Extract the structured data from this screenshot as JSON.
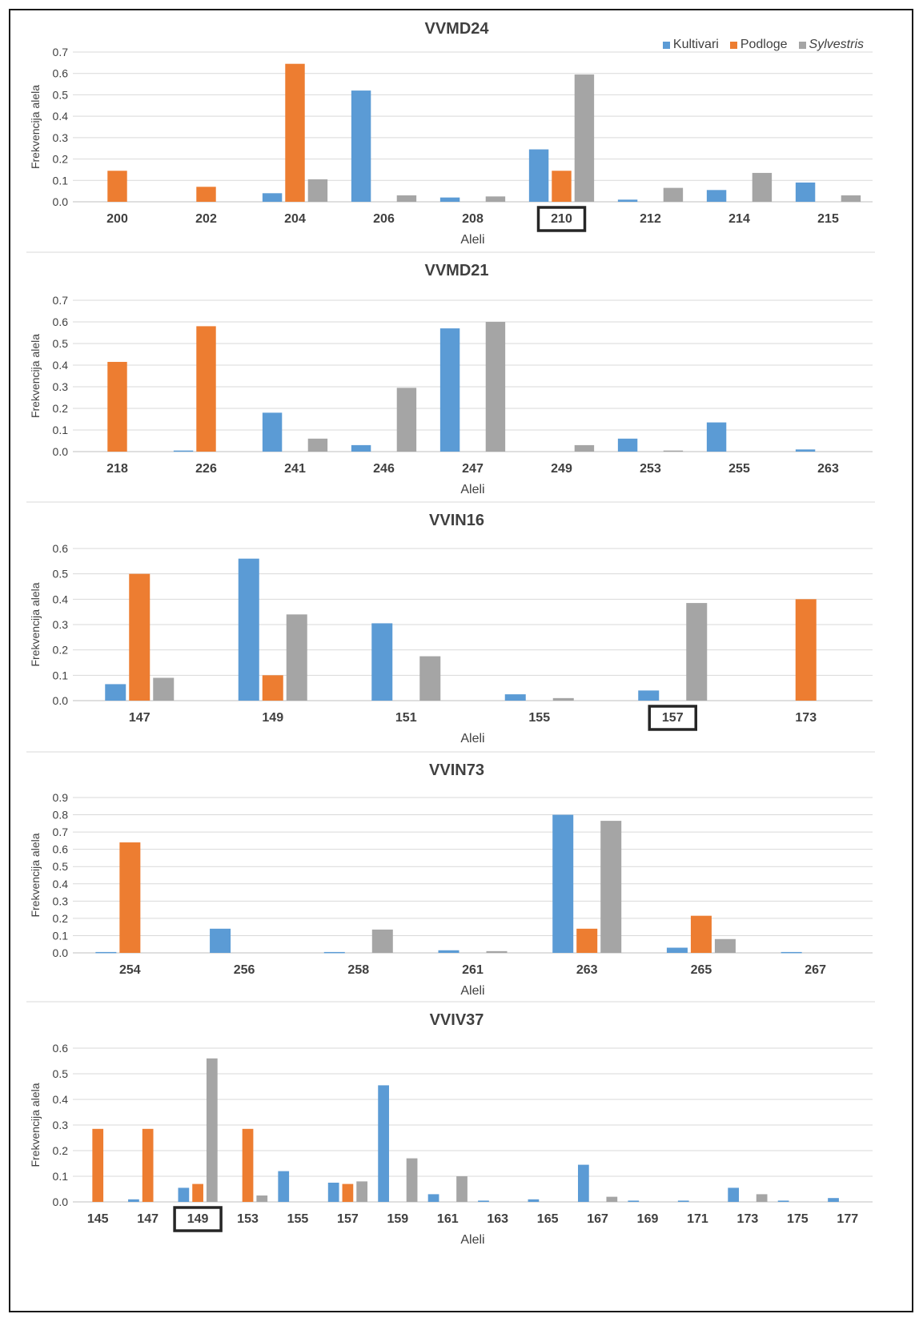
{
  "legend": [
    {
      "name": "Kultivari",
      "color": "#5b9bd5",
      "italic": false
    },
    {
      "name": "Podloge",
      "color": "#ed7d31",
      "italic": false
    },
    {
      "name": "Sylvestris",
      "color": "#a5a5a5",
      "italic": true
    }
  ],
  "chart_data": [
    {
      "type": "bar",
      "title": "VVMD24",
      "xlabel": "Aleli",
      "ylabel": "Frekvencija alela",
      "ylim": [
        0,
        0.7
      ],
      "yticks": [
        "0.0",
        "0.1",
        "0.2",
        "0.3",
        "0.4",
        "0.5",
        "0.6",
        "0.7"
      ],
      "categories": [
        "200",
        "202",
        "204",
        "206",
        "208",
        "210",
        "212",
        "214",
        "215"
      ],
      "highlighted": "210",
      "series": [
        {
          "name": "Kultivari",
          "values": [
            0,
            0,
            0.04,
            0.52,
            0.02,
            0.245,
            0.01,
            0.055,
            0.09
          ]
        },
        {
          "name": "Podloge",
          "values": [
            0.145,
            0.07,
            0.645,
            0,
            0,
            0.145,
            0,
            0,
            0
          ]
        },
        {
          "name": "Sylvestris",
          "values": [
            0,
            0,
            0.105,
            0.03,
            0.025,
            0.595,
            0.065,
            0.135,
            0.03
          ]
        }
      ]
    },
    {
      "type": "bar",
      "title": "VVMD21",
      "xlabel": "Aleli",
      "ylabel": "Frekvencija alela",
      "ylim": [
        0,
        0.7
      ],
      "yticks": [
        "0.0",
        "0.1",
        "0.2",
        "0.3",
        "0.4",
        "0.5",
        "0.6",
        "0.7"
      ],
      "categories": [
        "218",
        "226",
        "241",
        "246",
        "247",
        "249",
        "253",
        "255",
        "263"
      ],
      "highlighted": null,
      "series": [
        {
          "name": "Kultivari",
          "values": [
            0,
            0.005,
            0.18,
            0.03,
            0.57,
            0,
            0.06,
            0.135,
            0.01
          ]
        },
        {
          "name": "Podloge",
          "values": [
            0.415,
            0.58,
            0,
            0,
            0,
            0,
            0,
            0,
            0
          ]
        },
        {
          "name": "Sylvestris",
          "values": [
            0,
            0,
            0.06,
            0.295,
            0.6,
            0.03,
            0.005,
            0,
            0
          ]
        }
      ]
    },
    {
      "type": "bar",
      "title": "VVIN16",
      "xlabel": "Aleli",
      "ylabel": "Frekvencija alela",
      "ylim": [
        0,
        0.6
      ],
      "yticks": [
        "0.0",
        "0.1",
        "0.2",
        "0.3",
        "0.4",
        "0.5",
        "0.6"
      ],
      "categories": [
        "147",
        "149",
        "151",
        "155",
        "157",
        "173"
      ],
      "highlighted": "157",
      "series": [
        {
          "name": "Kultivari",
          "values": [
            0.065,
            0.56,
            0.305,
            0.025,
            0.04,
            0
          ]
        },
        {
          "name": "Podloge",
          "values": [
            0.5,
            0.1,
            0,
            0,
            0,
            0.4
          ]
        },
        {
          "name": "Sylvestris",
          "values": [
            0.09,
            0.34,
            0.175,
            0.01,
            0.385,
            0
          ]
        }
      ]
    },
    {
      "type": "bar",
      "title": "VVIN73",
      "xlabel": "Aleli",
      "ylabel": "Frekvencija alela",
      "ylim": [
        0,
        0.9
      ],
      "yticks": [
        "0.0",
        "0.1",
        "0.2",
        "0.3",
        "0.4",
        "0.5",
        "0.6",
        "0.7",
        "0.8",
        "0.9"
      ],
      "categories": [
        "254",
        "256",
        "258",
        "261",
        "263",
        "265",
        "267"
      ],
      "highlighted": null,
      "series": [
        {
          "name": "Kultivari",
          "values": [
            0.005,
            0.14,
            0.005,
            0.015,
            0.8,
            0.03,
            0.005
          ]
        },
        {
          "name": "Podloge",
          "values": [
            0.64,
            0,
            0,
            0,
            0.14,
            0.215,
            0
          ]
        },
        {
          "name": "Sylvestris",
          "values": [
            0,
            0,
            0.135,
            0.01,
            0.765,
            0.08,
            0
          ]
        }
      ]
    },
    {
      "type": "bar",
      "title": "VVIV37",
      "xlabel": "Aleli",
      "ylabel": "Frekvencija alela",
      "ylim": [
        0,
        0.6
      ],
      "yticks": [
        "0.0",
        "0.1",
        "0.2",
        "0.3",
        "0.4",
        "0.5",
        "0.6"
      ],
      "categories": [
        "145",
        "147",
        "149",
        "153",
        "155",
        "157",
        "159",
        "161",
        "163",
        "165",
        "167",
        "169",
        "171",
        "173",
        "175",
        "177"
      ],
      "highlighted": "149",
      "series": [
        {
          "name": "Kultivari",
          "values": [
            0,
            0.01,
            0.055,
            0,
            0.12,
            0.075,
            0.455,
            0.03,
            0.005,
            0.01,
            0.145,
            0.005,
            0.005,
            0.055,
            0.005,
            0.015
          ]
        },
        {
          "name": "Podloge",
          "values": [
            0.285,
            0.285,
            0.07,
            0.285,
            0,
            0.07,
            0,
            0,
            0,
            0,
            0,
            0,
            0,
            0,
            0,
            0
          ]
        },
        {
          "name": "Sylvestris",
          "values": [
            0,
            0,
            0.56,
            0.025,
            0,
            0.08,
            0.17,
            0.1,
            0,
            0,
            0.02,
            0,
            0,
            0.03,
            0,
            0
          ]
        }
      ]
    }
  ]
}
